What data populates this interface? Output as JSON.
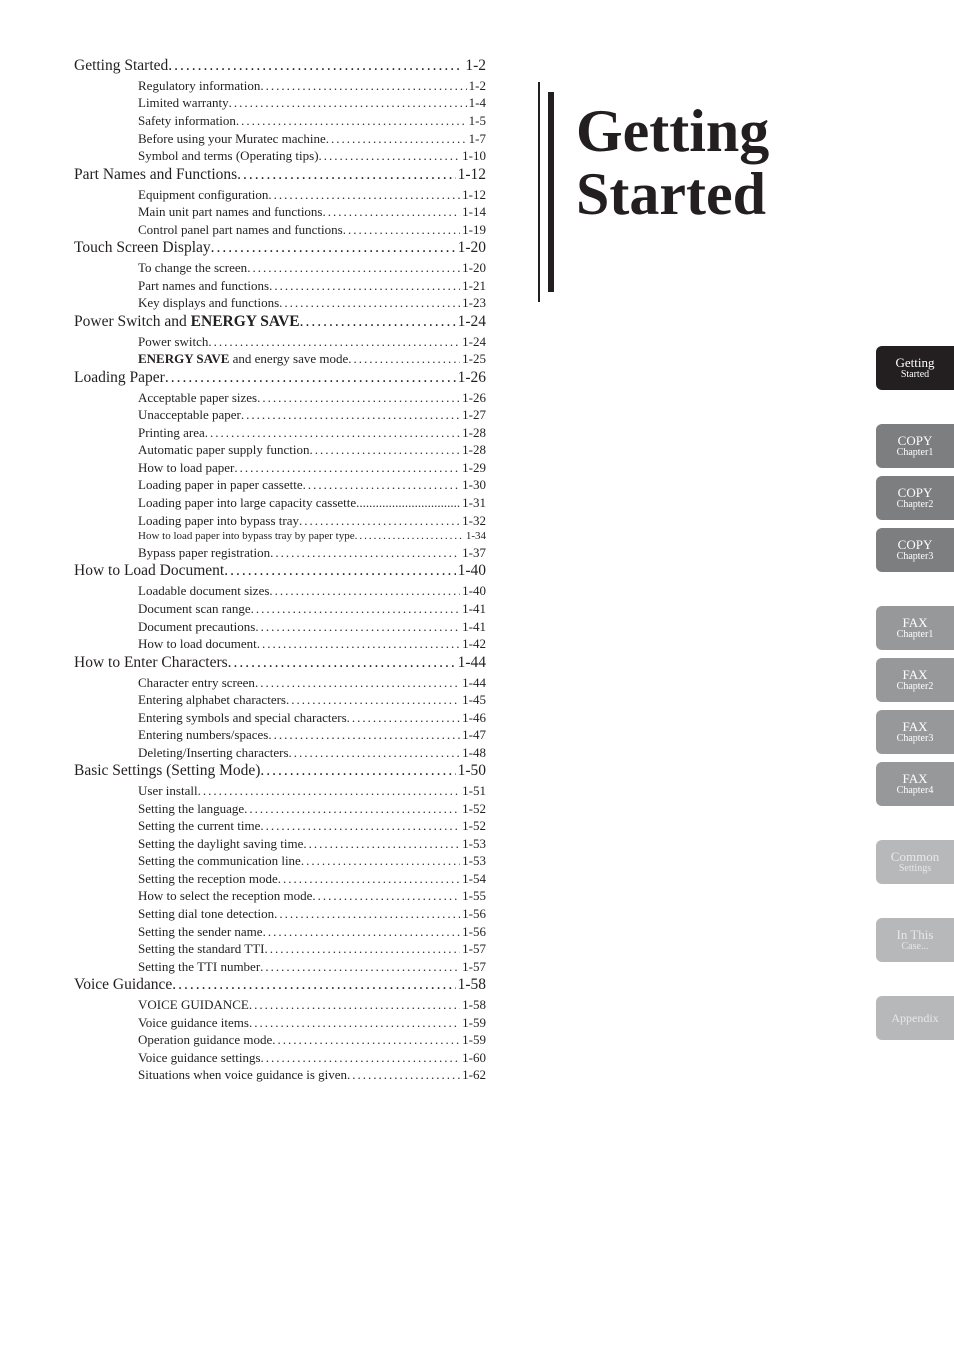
{
  "colors": {
    "text": "#231f20",
    "tab_active_bg": "#231f20",
    "tab_active_fg": "#ffffff",
    "tab_copy_bg": "#7c7e80",
    "tab_fax_bg": "#96989a",
    "tab_dim_bg": "#b7b8ba",
    "tab_fg_dim": "#e8e8e8"
  },
  "title": {
    "line1": "Getting",
    "line2": "Started"
  },
  "tabs": [
    {
      "t1": "Getting",
      "t2": "Started",
      "bg": "#231f20",
      "fg": "#ffffff"
    },
    {
      "spacer": true
    },
    {
      "t1": "COPY",
      "t2": "Chapter1",
      "bg": "#7c7e80",
      "fg": "#ffffff"
    },
    {
      "t1": "COPY",
      "t2": "Chapter2",
      "bg": "#7c7e80",
      "fg": "#ffffff"
    },
    {
      "t1": "COPY",
      "t2": "Chapter3",
      "bg": "#7c7e80",
      "fg": "#ffffff"
    },
    {
      "spacer": true
    },
    {
      "t1": "FAX",
      "t2": "Chapter1",
      "bg": "#96989a",
      "fg": "#ffffff"
    },
    {
      "t1": "FAX",
      "t2": "Chapter2",
      "bg": "#96989a",
      "fg": "#ffffff"
    },
    {
      "t1": "FAX",
      "t2": "Chapter3",
      "bg": "#96989a",
      "fg": "#ffffff"
    },
    {
      "t1": "FAX",
      "t2": "Chapter4",
      "bg": "#96989a",
      "fg": "#ffffff"
    },
    {
      "spacer": true
    },
    {
      "t1": "Common",
      "t2": "Settings",
      "bg": "#b7b8ba",
      "fg": "#e8e8e8"
    },
    {
      "spacer": true
    },
    {
      "t1": "In This",
      "t2": "Case...",
      "bg": "#b7b8ba",
      "fg": "#e8e8e8"
    },
    {
      "spacer": true
    },
    {
      "t1": "Appendix",
      "t2": "",
      "bg": "#b7b8ba",
      "fg": "#e8e8e8",
      "one": true
    }
  ],
  "toc": [
    {
      "lvl": 0,
      "label": "Getting Started",
      "page": "1-2"
    },
    {
      "lvl": 1,
      "label": "Regulatory information",
      "page": "1-2"
    },
    {
      "lvl": 1,
      "label": "Limited warranty",
      "page": "1-4"
    },
    {
      "lvl": 1,
      "label": "Safety information",
      "page": "1-5"
    },
    {
      "lvl": 1,
      "label": "Before using your Muratec machine",
      "page": "1-7"
    },
    {
      "lvl": 1,
      "label": "Symbol and terms (Operating tips)",
      "page": "1-10"
    },
    {
      "lvl": 0,
      "label": "Part Names and Functions",
      "page": "1-12"
    },
    {
      "lvl": 1,
      "label": "Equipment configuration",
      "page": "1-12"
    },
    {
      "lvl": 1,
      "label": "Main unit part names and functions",
      "page": "1-14"
    },
    {
      "lvl": 1,
      "label": "Control panel part names and functions",
      "page": "1-19"
    },
    {
      "lvl": 0,
      "label": "Touch Screen Display",
      "page": "1-20"
    },
    {
      "lvl": 1,
      "label": "To change the screen",
      "page": "1-20"
    },
    {
      "lvl": 1,
      "label": "Part names and functions",
      "page": "1-21"
    },
    {
      "lvl": 1,
      "label": "Key displays and functions",
      "page": "1-23"
    },
    {
      "lvl": 0,
      "label_html": "Power Switch and <b>ENERGY SAVE</b>",
      "page": "1-24"
    },
    {
      "lvl": 1,
      "label": "Power switch",
      "page": "1-24"
    },
    {
      "lvl": 1,
      "label_html": "<b>ENERGY SAVE</b> and energy save mode",
      "page": "1-25"
    },
    {
      "lvl": 0,
      "label": "Loading Paper",
      "page": "1-26"
    },
    {
      "lvl": 1,
      "label": "Acceptable paper sizes",
      "page": "1-26"
    },
    {
      "lvl": 1,
      "label": "Unacceptable paper",
      "page": "1-27"
    },
    {
      "lvl": 1,
      "label": "Printing area",
      "page": "1-28"
    },
    {
      "lvl": 1,
      "label": "Automatic paper supply function",
      "page": "1-28"
    },
    {
      "lvl": 1,
      "label": "How to load paper",
      "page": "1-29"
    },
    {
      "lvl": 1,
      "label": "Loading paper in paper cassette",
      "page": "1-30"
    },
    {
      "lvl": 1,
      "label": "Loading paper into large capacity cassette",
      "page": "1-31",
      "tight": true
    },
    {
      "lvl": 1,
      "label": "Loading paper into bypass tray",
      "page": "1-32"
    },
    {
      "lvl": 1,
      "label": "How to load paper into bypass tray by paper type",
      "page": "1-34",
      "small": true
    },
    {
      "lvl": 1,
      "label": "Bypass paper registration",
      "page": "1-37"
    },
    {
      "lvl": 0,
      "label": "How to Load Document",
      "page": "1-40"
    },
    {
      "lvl": 1,
      "label": "Loadable document sizes",
      "page": "1-40"
    },
    {
      "lvl": 1,
      "label": "Document scan range",
      "page": "1-41"
    },
    {
      "lvl": 1,
      "label": "Document precautions",
      "page": "1-41"
    },
    {
      "lvl": 1,
      "label": "How to load document",
      "page": "1-42"
    },
    {
      "lvl": 0,
      "label": "How to Enter Characters",
      "page": "1-44"
    },
    {
      "lvl": 1,
      "label": "Character entry screen",
      "page": "1-44"
    },
    {
      "lvl": 1,
      "label": "Entering alphabet characters",
      "page": "1-45"
    },
    {
      "lvl": 1,
      "label": "Entering symbols and special characters",
      "page": "1-46"
    },
    {
      "lvl": 1,
      "label": "Entering numbers/spaces",
      "page": "1-47"
    },
    {
      "lvl": 1,
      "label": "Deleting/Inserting characters",
      "page": "1-48"
    },
    {
      "lvl": 0,
      "label": "Basic Settings (Setting Mode)",
      "page": "1-50"
    },
    {
      "lvl": 1,
      "label": "User install",
      "page": "1-51"
    },
    {
      "lvl": 1,
      "label": "Setting the language",
      "page": "1-52"
    },
    {
      "lvl": 1,
      "label": "Setting the current time",
      "page": "1-52"
    },
    {
      "lvl": 1,
      "label": "Setting the daylight saving time",
      "page": "1-53"
    },
    {
      "lvl": 1,
      "label": "Setting the communication line",
      "page": "1-53"
    },
    {
      "lvl": 1,
      "label": "Setting the reception mode",
      "page": "1-54"
    },
    {
      "lvl": 1,
      "label": "How to select the reception mode",
      "page": "1-55"
    },
    {
      "lvl": 1,
      "label": "Setting dial tone detection",
      "page": "1-56"
    },
    {
      "lvl": 1,
      "label": "Setting the sender name",
      "page": "1-56"
    },
    {
      "lvl": 1,
      "label": "Setting the standard TTI",
      "page": "1-57"
    },
    {
      "lvl": 1,
      "label": "Setting the TTI number",
      "page": "1-57"
    },
    {
      "lvl": 0,
      "label": "Voice Guidance",
      "page": "1-58"
    },
    {
      "lvl": 1,
      "label": "VOICE GUIDANCE",
      "page": "1-58"
    },
    {
      "lvl": 1,
      "label": "Voice guidance items",
      "page": "1-59"
    },
    {
      "lvl": 1,
      "label": "Operation guidance mode",
      "page": "1-59"
    },
    {
      "lvl": 1,
      "label": "Voice guidance settings",
      "page": "1-60"
    },
    {
      "lvl": 1,
      "label": "Situations when voice guidance is given",
      "page": "1-62"
    }
  ]
}
